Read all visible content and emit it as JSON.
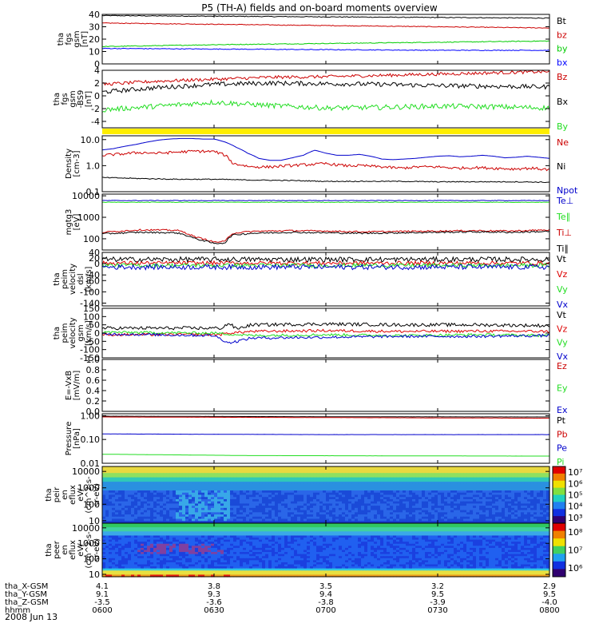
{
  "title": "P5 (TH-A) fields and on-board moments overview",
  "date_label": "2008 Jun 13",
  "chart_data": [
    {
      "type": "line",
      "ylabel": [
        "tha",
        "fgs",
        "gsm",
        "[nT]"
      ],
      "ylim": [
        0,
        40
      ],
      "yticks": [
        {
          "v": 0,
          "t": "0"
        },
        {
          "v": 10,
          "t": "10"
        },
        {
          "v": 20,
          "t": "20"
        },
        {
          "v": 30,
          "t": "30"
        },
        {
          "v": 40,
          "t": "40"
        }
      ],
      "legend": [
        "Bt",
        "bz",
        "by",
        "bx"
      ],
      "series": [
        {
          "name": "Bt",
          "color": "#000000",
          "x": [
            0,
            0.5,
            1,
            1.5,
            2
          ],
          "values": [
            39,
            38.5,
            38,
            37.5,
            37
          ],
          "noise": 0.3
        },
        {
          "name": "bz",
          "color": "#cc0000",
          "x": [
            0,
            0.5,
            1,
            1.5,
            2
          ],
          "values": [
            33,
            32,
            31,
            30,
            29
          ],
          "noise": 0.3
        },
        {
          "name": "by",
          "color": "#00cc00",
          "x": [
            0,
            0.5,
            1,
            1.5,
            2
          ],
          "values": [
            14,
            15.5,
            16.5,
            17.5,
            18.5
          ],
          "noise": 0.3
        },
        {
          "name": "bx",
          "color": "#0000ff",
          "x": [
            0,
            0.5,
            1,
            1.5,
            2
          ],
          "values": [
            12.5,
            12,
            11.5,
            11,
            11
          ],
          "noise": 0.3
        }
      ]
    },
    {
      "type": "line",
      "ylabel": [
        "tha",
        "fgs",
        "gsm",
        "-BS9",
        "[nT]"
      ],
      "ylim": [
        -5,
        4
      ],
      "yticks": [
        {
          "v": -4,
          "t": "-4"
        },
        {
          "v": -2,
          "t": "-2"
        },
        {
          "v": 0,
          "t": "0"
        },
        {
          "v": 2,
          "t": "2"
        },
        {
          "v": 4,
          "t": "4"
        }
      ],
      "legend": [
        "Bz",
        "Bx",
        "By"
      ],
      "series": [
        {
          "name": "Bz",
          "color": "#cc0000",
          "x": [
            0,
            0.25,
            0.5,
            0.75,
            1,
            1.25,
            1.5,
            1.75,
            2
          ],
          "values": [
            1.8,
            2.3,
            2.6,
            2.9,
            3.0,
            3.2,
            3.4,
            3.6,
            3.8
          ],
          "noise": 0.25
        },
        {
          "name": "Bx",
          "color": "#000000",
          "x": [
            0,
            0.25,
            0.5,
            0.75,
            1,
            1.25,
            1.5,
            1.75,
            2
          ],
          "values": [
            0.6,
            1.3,
            1.8,
            2.0,
            1.9,
            1.8,
            1.6,
            1.5,
            1.4
          ],
          "noise": 0.35
        },
        {
          "name": "By",
          "color": "#22dd22",
          "x": [
            0,
            0.25,
            0.5,
            0.75,
            1,
            1.25,
            1.5,
            1.75,
            2
          ],
          "values": [
            -2.2,
            -1.6,
            -1.0,
            -1.5,
            -1.9,
            -1.8,
            -1.6,
            -1.7,
            -1.9
          ],
          "noise": 0.4
        }
      ]
    },
    {
      "type": "line",
      "scale": "log",
      "ylabel": [
        "Density",
        "[cm-3]"
      ],
      "ylim": [
        0.1,
        14
      ],
      "yticks": [
        {
          "v": 0.1,
          "t": "0.1"
        },
        {
          "v": 1,
          "t": "1.0"
        },
        {
          "v": 10,
          "t": "10.0"
        }
      ],
      "legend": [
        "Ne",
        "Ni",
        "Npot"
      ],
      "series": [
        {
          "name": "Npot",
          "color": "#0000cc",
          "x": [
            0,
            0.3,
            0.6,
            0.9,
            1.2,
            1.5,
            1.8,
            2.1,
            2.4,
            2.7,
            3.0,
            3.3,
            3.6,
            3.9,
            4.2,
            4.5,
            4.8,
            5.1,
            5.4,
            5.7,
            6.0,
            6.3,
            6.6,
            6.9,
            7.2,
            7.5,
            7.8,
            8.1,
            8.4,
            8.7,
            9.0,
            9.3,
            9.6,
            9.9,
            10.2,
            10.5,
            10.8,
            11.1,
            11.4,
            11.7,
            12.0
          ],
          "values": [
            4,
            4.5,
            5.5,
            6.5,
            8,
            9.5,
            10.5,
            11,
            11,
            10.5,
            10.5,
            8,
            5,
            3,
            1.9,
            1.6,
            1.6,
            2,
            2.5,
            3.9,
            3,
            2.5,
            2.5,
            2.7,
            2.3,
            1.8,
            1.7,
            1.8,
            1.9,
            2.1,
            2.3,
            2.4,
            2.2,
            2.3,
            2.5,
            2.3,
            2.0,
            2.1,
            2.3,
            2.1,
            1.9
          ]
        },
        {
          "name": "Ne",
          "color": "#cc0000",
          "x": [
            0,
            0.5,
            1,
            1.5,
            2,
            2.5,
            3,
            3.3,
            3.5,
            4,
            4.5,
            5,
            5.5,
            6,
            6.5,
            7,
            7.5,
            8,
            8.5,
            9,
            9.5,
            10,
            10.5,
            11,
            11.5,
            12
          ],
          "values": [
            2.5,
            2.8,
            3.2,
            3.0,
            3.3,
            3.6,
            3.5,
            2.5,
            1.2,
            0.9,
            0.9,
            1.0,
            1.1,
            1.2,
            1.0,
            1.0,
            0.9,
            0.8,
            0.9,
            0.9,
            0.8,
            0.85,
            0.8,
            0.75,
            0.8,
            0.7
          ],
          "noise": 0.12
        },
        {
          "name": "Ni",
          "color": "#000000",
          "x": [
            0,
            1,
            2,
            3,
            4,
            5,
            6,
            7,
            8,
            9,
            10,
            11,
            12
          ],
          "values": [
            0.35,
            0.32,
            0.3,
            0.3,
            0.28,
            0.27,
            0.25,
            0.25,
            0.25,
            0.24,
            0.24,
            0.24,
            0.23
          ],
          "noise": 0.04
        }
      ]
    },
    {
      "type": "line",
      "scale": "log",
      "ylabel": [
        "mgtg3",
        "[eV]"
      ],
      "ylim": [
        30,
        12000
      ],
      "yticks": [
        {
          "v": 100,
          "t": "100"
        },
        {
          "v": 1000,
          "t": "1000"
        },
        {
          "v": 10000,
          "t": "10000"
        }
      ],
      "legend": [
        "Te⊥",
        "Te∥",
        "Ti⊥",
        "Ti∥"
      ],
      "series": [
        {
          "name": "Te⊥",
          "color": "#0000cc",
          "x": [
            0,
            12
          ],
          "values": [
            6000,
            6000
          ],
          "noise": 0.03
        },
        {
          "name": "Te∥",
          "color": "#22dd22",
          "x": [
            0,
            12
          ],
          "values": [
            5000,
            5000
          ],
          "noise": 0.03
        },
        {
          "name": "Ti⊥",
          "color": "#cc0000",
          "x": [
            0,
            1,
            2,
            2.5,
            3,
            3.3,
            3.5,
            4,
            5,
            6,
            7,
            8,
            9,
            10,
            11,
            12
          ],
          "values": [
            200,
            260,
            250,
            120,
            70,
            75,
            180,
            220,
            240,
            230,
            210,
            220,
            230,
            240,
            230,
            260
          ],
          "noise": 0.08
        },
        {
          "name": "Ti∥",
          "color": "#000000",
          "x": [
            0,
            1,
            2,
            2.5,
            3,
            3.3,
            3.5,
            4,
            5,
            6,
            7,
            8,
            9,
            10,
            11,
            12
          ],
          "values": [
            170,
            200,
            190,
            100,
            60,
            65,
            150,
            180,
            200,
            190,
            180,
            190,
            200,
            210,
            200,
            220
          ],
          "noise": 0.08
        }
      ]
    },
    {
      "type": "line",
      "ylabel": [
        "tha",
        "peim",
        "velocity",
        "dsl",
        "[km/s]"
      ],
      "ylim": [
        -150,
        40
      ],
      "yticks": [
        {
          "v": -140,
          "t": "-140"
        },
        {
          "v": -100,
          "t": "-100"
        },
        {
          "v": -60,
          "t": "-60"
        },
        {
          "v": -40,
          "t": "-40"
        },
        {
          "v": 0,
          "t": "0"
        },
        {
          "v": 20,
          "t": "20"
        },
        {
          "v": 40,
          "t": "40"
        }
      ],
      "legend": [
        "Vt",
        "Vz",
        "Vy",
        "Vx"
      ],
      "series": [
        {
          "name": "Vt",
          "color": "#000000",
          "x": [
            0,
            12
          ],
          "values": [
            15,
            15
          ],
          "noise": 9
        },
        {
          "name": "Vz",
          "color": "#dd0000",
          "x": [
            0,
            12
          ],
          "values": [
            2,
            2
          ],
          "noise": 7
        },
        {
          "name": "Vy",
          "color": "#22dd22",
          "x": [
            0,
            12
          ],
          "values": [
            -6,
            -6
          ],
          "noise": 7
        },
        {
          "name": "Vx",
          "color": "#0000cc",
          "x": [
            0,
            12
          ],
          "values": [
            -12,
            -12
          ],
          "noise": 9
        }
      ]
    },
    {
      "type": "line",
      "ylabel": [
        "tha",
        "peim",
        "velocity",
        "gsm",
        "[km/s]"
      ],
      "ylim": [
        -150,
        150
      ],
      "yticks": [
        {
          "v": -150,
          "t": "-150"
        },
        {
          "v": -100,
          "t": "-100"
        },
        {
          "v": -50,
          "t": "-50"
        },
        {
          "v": 0,
          "t": "0"
        },
        {
          "v": 50,
          "t": "50"
        },
        {
          "v": 100,
          "t": "100"
        },
        {
          "v": 150,
          "t": "150"
        }
      ],
      "legend": [
        "Vt",
        "Vz",
        "Vy",
        "Vx"
      ],
      "series": [
        {
          "name": "Vt",
          "color": "#000000",
          "x": [
            0,
            3.2,
            3.4,
            3.6,
            4,
            6,
            8,
            10,
            12
          ],
          "values": [
            30,
            30,
            60,
            25,
            50,
            55,
            50,
            50,
            45
          ],
          "noise": 10
        },
        {
          "name": "Vz",
          "color": "#dd0000",
          "x": [
            0,
            3.2,
            3.4,
            4,
            6,
            8,
            10,
            12
          ],
          "values": [
            -10,
            -8,
            0,
            10,
            15,
            10,
            12,
            10
          ],
          "noise": 8
        },
        {
          "name": "Vy",
          "color": "#22dd22",
          "x": [
            0,
            3,
            4,
            6,
            8,
            10,
            12
          ],
          "values": [
            5,
            0,
            -15,
            -10,
            -15,
            -10,
            -15
          ],
          "noise": 8
        },
        {
          "name": "Vx",
          "color": "#0000cc",
          "x": [
            0,
            3,
            3.4,
            4,
            6,
            8,
            10,
            12
          ],
          "values": [
            -5,
            -15,
            -60,
            -30,
            -25,
            -20,
            -20,
            -15
          ],
          "noise": 8
        }
      ]
    },
    {
      "type": "line",
      "ylabel": [
        "E=-VxB",
        "[mV/m]"
      ],
      "ylim": [
        0,
        1
      ],
      "yticks": [
        {
          "v": 0,
          "t": "0.0"
        },
        {
          "v": 0.2,
          "t": "0.2"
        },
        {
          "v": 0.4,
          "t": "0.4"
        },
        {
          "v": 0.6,
          "t": "0.6"
        },
        {
          "v": 0.8,
          "t": "0.8"
        },
        {
          "v": 1.0,
          "t": "1.0"
        }
      ],
      "legend": [
        "Ez",
        "Ey",
        "Ex"
      ],
      "series": []
    },
    {
      "type": "line",
      "scale": "log",
      "ylabel": [
        "Pressure",
        "[nPa]"
      ],
      "ylim": [
        0.01,
        1.2
      ],
      "yticks": [
        {
          "v": 0.01,
          "t": "0.01"
        },
        {
          "v": 0.1,
          "t": "0.10"
        },
        {
          "v": 1,
          "t": "1.00"
        }
      ],
      "legend": [
        "Pt",
        "Pb",
        "Pe",
        "Pi"
      ],
      "series": [
        {
          "name": "Pt",
          "color": "#000000",
          "x": [
            0,
            6,
            12
          ],
          "values": [
            0.95,
            0.9,
            0.88
          ],
          "noise": 0.005
        },
        {
          "name": "Pb",
          "color": "#cc0000",
          "x": [
            0,
            6,
            12
          ],
          "values": [
            0.88,
            0.83,
            0.78
          ],
          "noise": 0.005
        },
        {
          "name": "Pe",
          "color": "#0000cc",
          "x": [
            0,
            6,
            12
          ],
          "values": [
            0.17,
            0.16,
            0.16
          ],
          "noise": 0.005
        },
        {
          "name": "Pi",
          "color": "#22dd22",
          "x": [
            0,
            4,
            12
          ],
          "values": [
            0.024,
            0.021,
            0.02
          ],
          "noise": 0.002
        }
      ]
    },
    {
      "type": "heatmap",
      "scale": "log",
      "ylabel": [
        "tha",
        "peir",
        "en",
        "eflux",
        "eV/",
        "(cm^2-s-",
        "sr-eV)"
      ],
      "ylim": [
        7,
        20000
      ],
      "yticks": [
        {
          "v": 10,
          "t": "10"
        },
        {
          "v": 100,
          "t": "100"
        },
        {
          "v": 1000,
          "t": "1000"
        },
        {
          "v": 10000,
          "t": "10000"
        }
      ],
      "colorbar": {
        "labels": [
          "10³",
          "10⁴",
          "10⁵",
          "10⁶",
          "10⁷"
        ]
      }
    },
    {
      "type": "heatmap",
      "scale": "log",
      "ylabel": [
        "tha",
        "peer",
        "en",
        "eflux",
        "eV/",
        "(cm^2-s-",
        "sr-eV)"
      ],
      "ylim": [
        7,
        20000
      ],
      "yticks": [
        {
          "v": 10,
          "t": "10"
        },
        {
          "v": 100,
          "t": "100"
        },
        {
          "v": 1000,
          "t": "1000"
        },
        {
          "v": 10000,
          "t": "10000"
        }
      ],
      "colorbar": {
        "labels": [
          "10⁶",
          "10⁷",
          "10⁸"
        ]
      }
    }
  ],
  "x_axis": {
    "rows": [
      {
        "label": "tha_X-GSM",
        "values": [
          "4.1",
          "3.8",
          "3.5",
          "3.2",
          "2.9"
        ]
      },
      {
        "label": "tha_Y-GSM",
        "values": [
          "9.1",
          "9.3",
          "9.4",
          "9.5",
          "9.5"
        ]
      },
      {
        "label": "tha_Z-GSM",
        "values": [
          "-3.5",
          "-3.6",
          "-3.8",
          "-3.9",
          "-4.0"
        ]
      },
      {
        "label": "hhmm",
        "values": [
          "0600",
          "0630",
          "0700",
          "0730",
          "0800"
        ]
      }
    ],
    "tick_x": [
      0,
      3,
      6,
      9,
      12
    ]
  }
}
